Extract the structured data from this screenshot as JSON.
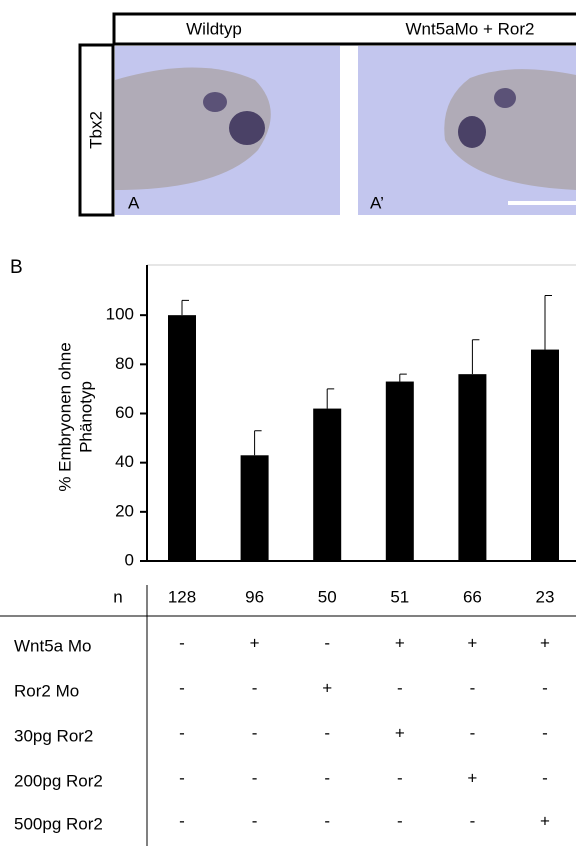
{
  "panel_a": {
    "letter_a": "A",
    "letter_a2": "A’",
    "columns": [
      "Wildtyp",
      "Wnt5aMo + Ror2"
    ],
    "row_label": "Tbx2"
  },
  "panel_b": {
    "letter": "B"
  },
  "chart_data": {
    "type": "bar",
    "ylabel": [
      "% Embryonen ohne",
      "Phänotyp"
    ],
    "values": [
      100,
      43,
      62,
      73,
      76,
      86
    ],
    "errors": [
      6,
      10,
      8,
      3,
      14,
      22
    ],
    "color": "#000000",
    "ylim": [
      0,
      120
    ],
    "yticks": [
      0,
      20,
      40,
      60,
      80,
      100
    ]
  },
  "table": {
    "n_label": "n",
    "n": [
      128,
      96,
      50,
      51,
      66,
      23
    ],
    "rows": [
      {
        "label": "Wnt5a Mo",
        "cells": [
          "-",
          "+",
          "-",
          "+",
          "+",
          "+"
        ]
      },
      {
        "label": "Ror2 Mo",
        "cells": [
          "-",
          "-",
          "+",
          "-",
          "-",
          "-"
        ]
      },
      {
        "label": "30pg Ror2",
        "cells": [
          "-",
          "-",
          "-",
          "+",
          "-",
          "-"
        ]
      },
      {
        "label": "200pg Ror2",
        "cells": [
          "-",
          "-",
          "-",
          "-",
          "+",
          "-"
        ]
      },
      {
        "label": "500pg Ror2",
        "cells": [
          "-",
          "-",
          "-",
          "-",
          "-",
          "+"
        ]
      }
    ]
  }
}
